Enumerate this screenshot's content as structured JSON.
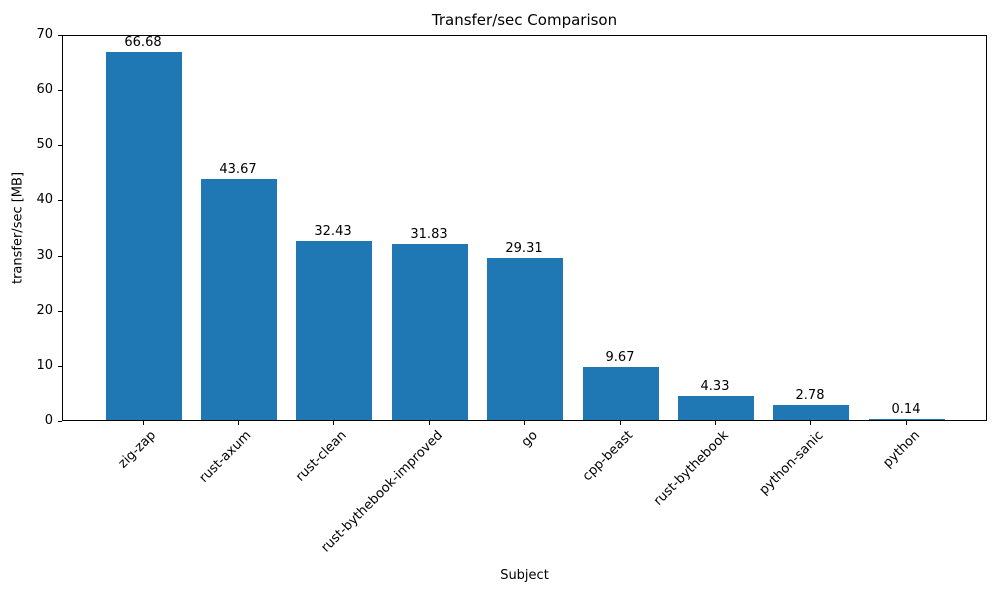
{
  "chart_data": {
    "type": "bar",
    "title": "Transfer/sec Comparison",
    "xlabel": "Subject",
    "ylabel": "transfer/sec [MB]",
    "categories": [
      "zig-zap",
      "rust-axum",
      "rust-clean",
      "rust-bythebook-improved",
      "go",
      "cpp-beast",
      "rust-bythebook",
      "python-sanic",
      "python"
    ],
    "values": [
      66.68,
      43.67,
      32.43,
      31.83,
      29.31,
      9.67,
      4.33,
      2.78,
      0.14
    ],
    "bar_labels": [
      "66.68",
      "43.67",
      "32.43",
      "31.83",
      "29.31",
      "9.67",
      "4.33",
      "2.78",
      "0.14"
    ],
    "yticks": [
      "0",
      "10",
      "20",
      "30",
      "40",
      "50",
      "60",
      "70"
    ],
    "ylim": [
      0,
      70
    ],
    "bar_color": "#1f77b4",
    "grid": false,
    "legend_position": "none"
  }
}
